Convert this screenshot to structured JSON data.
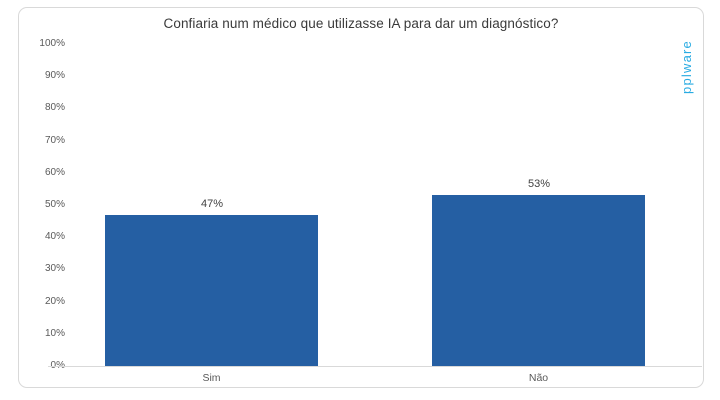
{
  "chart_data": {
    "type": "bar",
    "title": "Confiaria num médico que utilizasse IA para dar um diagnóstico?",
    "categories": [
      "Sim",
      "Não"
    ],
    "values": [
      47,
      53
    ],
    "value_labels": [
      "47%",
      "53%"
    ],
    "xlabel": "",
    "ylabel": "",
    "ylim": [
      0,
      100
    ],
    "ytick_step": 10,
    "ytick_labels": [
      "0%",
      "10%",
      "20%",
      "30%",
      "40%",
      "50%",
      "60%",
      "70%",
      "80%",
      "90%",
      "100%"
    ],
    "grid": false,
    "legend": "none",
    "colors": {
      "bar": "#255fa3",
      "watermark": "#29abe2",
      "title_text": "#3a3a3a",
      "axis_text": "#595959",
      "value_text": "#404040",
      "baseline": "#d9d9d9",
      "frame_border": "#d9d9d9"
    }
  },
  "watermark": {
    "text": "pplware"
  }
}
